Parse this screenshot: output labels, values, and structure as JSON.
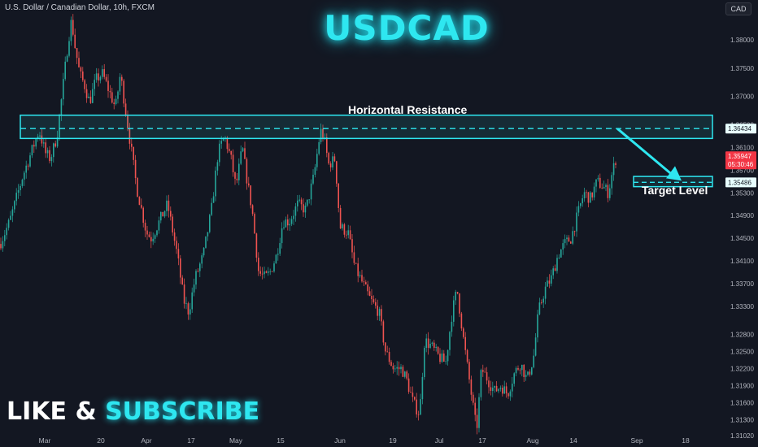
{
  "header": {
    "symbol_info": "U.S. Dollar / Canadian Dollar, 10h, FXCM",
    "currency": "CAD",
    "title": "USDCAD"
  },
  "promo": {
    "part1": "LIKE & ",
    "part2": "SUBSCRIBE"
  },
  "annotations": {
    "resistance_label": "Horizontal Resistance",
    "target_label": "Target Level",
    "resistance_zone": [
      1.3626,
      1.3667
    ],
    "resistance_line": 1.36434,
    "target_zone": [
      1.3541,
      1.3559
    ],
    "target_line": 1.35486
  },
  "colors": {
    "background": "#131722",
    "title": "#2ee7f0",
    "zone": "#2ee7f0",
    "candle_up": "#26a69a",
    "candle_down": "#ef5350",
    "axis_text": "#b2b5be",
    "price_tag": "#f23645"
  },
  "price_axis": {
    "labels": [
      "1.38000",
      "1.37500",
      "1.37000",
      "1.36500",
      "1.36100",
      "1.35700",
      "1.35300",
      "1.34900",
      "1.34500",
      "1.34100",
      "1.33700",
      "1.33300",
      "1.32800",
      "1.32500",
      "1.32200",
      "1.31900",
      "1.31600",
      "1.31300",
      "1.31020"
    ],
    "tags": {
      "resistance": "1.36434",
      "current_price": "1.35947",
      "countdown": "05:30:46",
      "target": "1.35486"
    }
  },
  "time_axis": {
    "labels": [
      "Mar",
      "20",
      "Apr",
      "17",
      "May",
      "15",
      "Jun",
      "19",
      "Jul",
      "17",
      "Aug",
      "14",
      "Sep",
      "18"
    ]
  },
  "chart_data": {
    "type": "candlestick",
    "series_name": "",
    "interval": "10h",
    "ylim": [
      1.3099,
      1.3853
    ],
    "path": [
      [
        0,
        1.344
      ],
      [
        12,
        1.348
      ],
      [
        28,
        1.356
      ],
      [
        38,
        1.36
      ],
      [
        48,
        1.364
      ],
      [
        56,
        1.36
      ],
      [
        62,
        1.359
      ],
      [
        70,
        1.363
      ],
      [
        76,
        1.37
      ],
      [
        84,
        1.38
      ],
      [
        88,
        1.3835
      ],
      [
        92,
        1.379
      ],
      [
        98,
        1.374
      ],
      [
        104,
        1.372
      ],
      [
        110,
        1.369
      ],
      [
        118,
        1.373
      ],
      [
        126,
        1.374
      ],
      [
        134,
        1.371
      ],
      [
        142,
        1.368
      ],
      [
        148,
        1.374
      ],
      [
        152,
        1.37
      ],
      [
        158,
        1.364
      ],
      [
        168,
        1.354
      ],
      [
        180,
        1.346
      ],
      [
        186,
        1.345
      ],
      [
        196,
        1.348
      ],
      [
        206,
        1.351
      ],
      [
        218,
        1.342
      ],
      [
        226,
        1.334
      ],
      [
        232,
        1.332
      ],
      [
        240,
        1.338
      ],
      [
        250,
        1.342
      ],
      [
        260,
        1.35
      ],
      [
        268,
        1.36
      ],
      [
        276,
        1.363
      ],
      [
        284,
        1.359
      ],
      [
        290,
        1.354
      ],
      [
        298,
        1.361
      ],
      [
        304,
        1.355
      ],
      [
        310,
        1.35
      ],
      [
        318,
        1.339
      ],
      [
        326,
        1.338
      ],
      [
        332,
        1.339
      ],
      [
        340,
        1.342
      ],
      [
        348,
        1.348
      ],
      [
        356,
        1.348
      ],
      [
        366,
        1.351
      ],
      [
        376,
        1.35
      ],
      [
        386,
        1.356
      ],
      [
        394,
        1.364
      ],
      [
        398,
        1.363
      ],
      [
        404,
        1.358
      ],
      [
        412,
        1.359
      ],
      [
        418,
        1.347
      ],
      [
        428,
        1.346
      ],
      [
        436,
        1.34
      ],
      [
        446,
        1.337
      ],
      [
        456,
        1.334
      ],
      [
        466,
        1.332
      ],
      [
        474,
        1.325
      ],
      [
        484,
        1.322
      ],
      [
        494,
        1.322
      ],
      [
        500,
        1.32
      ],
      [
        508,
        1.316
      ],
      [
        516,
        1.314
      ],
      [
        522,
        1.327
      ],
      [
        530,
        1.326
      ],
      [
        540,
        1.324
      ],
      [
        548,
        1.323
      ],
      [
        556,
        1.332
      ],
      [
        562,
        1.336
      ],
      [
        570,
        1.327
      ],
      [
        578,
        1.319
      ],
      [
        586,
        1.311
      ],
      [
        592,
        1.322
      ],
      [
        600,
        1.32
      ],
      [
        608,
        1.318
      ],
      [
        616,
        1.319
      ],
      [
        624,
        1.3175
      ],
      [
        632,
        1.321
      ],
      [
        640,
        1.323
      ],
      [
        648,
        1.32
      ],
      [
        656,
        1.324
      ],
      [
        662,
        1.332
      ],
      [
        670,
        1.336
      ],
      [
        678,
        1.338
      ],
      [
        686,
        1.342
      ],
      [
        694,
        1.344
      ],
      [
        702,
        1.345
      ],
      [
        710,
        1.349
      ],
      [
        718,
        1.353
      ],
      [
        726,
        1.352
      ],
      [
        734,
        1.355
      ],
      [
        742,
        1.354
      ],
      [
        748,
        1.353
      ],
      [
        752,
        1.356
      ],
      [
        758,
        1.3595
      ]
    ],
    "candles_up": [
      "#26a69a"
    ],
    "candles_down": [
      "#ef5350"
    ],
    "legend": "none",
    "grid": false
  }
}
